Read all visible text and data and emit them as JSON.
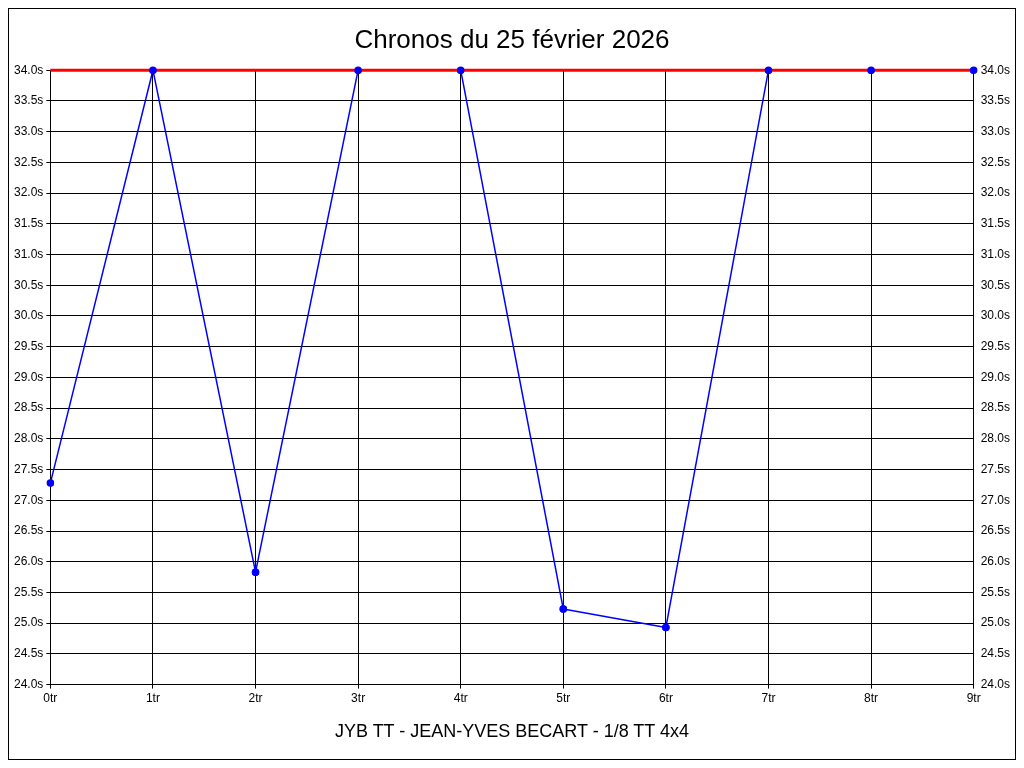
{
  "chart_data": {
    "type": "line",
    "title": "Chronos du 25 février 2026",
    "x": [
      0,
      1,
      2,
      3,
      4,
      5,
      6,
      7,
      8,
      9
    ],
    "series": [
      {
        "color": "#0000ff",
        "values": [
          27.28,
          34.0,
          25.83,
          34.0,
          34.0,
          25.23,
          24.93,
          34.0,
          34.0,
          34.0
        ]
      }
    ],
    "xlim": [
      0,
      9
    ],
    "xticks": [
      {
        "value": 0,
        "label": "0tr"
      },
      {
        "value": 1,
        "label": "1tr"
      },
      {
        "value": 2,
        "label": "2tr"
      },
      {
        "value": 3,
        "label": "3tr"
      },
      {
        "value": 4,
        "label": "4tr"
      },
      {
        "value": 5,
        "label": "5tr"
      },
      {
        "value": 6,
        "label": "6tr"
      },
      {
        "value": 7,
        "label": "7tr"
      },
      {
        "value": 8,
        "label": "8tr"
      },
      {
        "value": 9,
        "label": "9tr"
      }
    ],
    "ylim": [
      24,
      34
    ],
    "yticks": [
      {
        "value": 24,
        "label": "24.0s"
      },
      {
        "value": 24.5,
        "label": "24.5s"
      },
      {
        "value": 25,
        "label": "25.0s"
      },
      {
        "value": 25.5,
        "label": "25.5s"
      },
      {
        "value": 26,
        "label": "26.0s"
      },
      {
        "value": 26.5,
        "label": "26.5s"
      },
      {
        "value": 27,
        "label": "27.0s"
      },
      {
        "value": 27.5,
        "label": "27.5s"
      },
      {
        "value": 28,
        "label": "28.0s"
      },
      {
        "value": 28.5,
        "label": "28.5s"
      },
      {
        "value": 29,
        "label": "29.0s"
      },
      {
        "value": 29.5,
        "label": "29.5s"
      },
      {
        "value": 30,
        "label": "30.0s"
      },
      {
        "value": 30.5,
        "label": "30.5s"
      },
      {
        "value": 31,
        "label": "31.0s"
      },
      {
        "value": 31.5,
        "label": "31.5s"
      },
      {
        "value": 32,
        "label": "32.0s"
      },
      {
        "value": 32.5,
        "label": "32.5s"
      },
      {
        "value": 33,
        "label": "33.0s"
      },
      {
        "value": 33.5,
        "label": "33.5s"
      },
      {
        "value": 34,
        "label": "34.0s"
      }
    ],
    "y2lim": [
      24,
      34
    ],
    "y2ticks": [
      {
        "value": 24,
        "label": "24.0s"
      },
      {
        "value": 24.5,
        "label": "24.5s"
      },
      {
        "value": 25,
        "label": "25.0s"
      },
      {
        "value": 25.5,
        "label": "25.5s"
      },
      {
        "value": 26,
        "label": "26.0s"
      },
      {
        "value": 26.5,
        "label": "26.5s"
      },
      {
        "value": 27,
        "label": "27.0s"
      },
      {
        "value": 27.5,
        "label": "27.5s"
      },
      {
        "value": 28,
        "label": "28.0s"
      },
      {
        "value": 28.5,
        "label": "28.5s"
      },
      {
        "value": 29,
        "label": "29.0s"
      },
      {
        "value": 29.5,
        "label": "29.5s"
      },
      {
        "value": 30,
        "label": "30.0s"
      },
      {
        "value": 30.5,
        "label": "30.5s"
      },
      {
        "value": 31,
        "label": "31.0s"
      },
      {
        "value": 31.5,
        "label": "31.5s"
      },
      {
        "value": 32,
        "label": "32.0s"
      },
      {
        "value": 32.5,
        "label": "32.5s"
      },
      {
        "value": 33,
        "label": "33.0s"
      },
      {
        "value": 33.5,
        "label": "33.5s"
      },
      {
        "value": 34,
        "label": "34.0s"
      }
    ],
    "ref_lines": [
      {
        "axis": "y",
        "value": 34,
        "color": "#ff0000"
      }
    ],
    "annotations": [
      "JYB TT - JEAN-YVES BECART - 1/8 TT 4x4"
    ],
    "grid": true,
    "legend": false,
    "marker": "circle",
    "line_style": "solid"
  }
}
